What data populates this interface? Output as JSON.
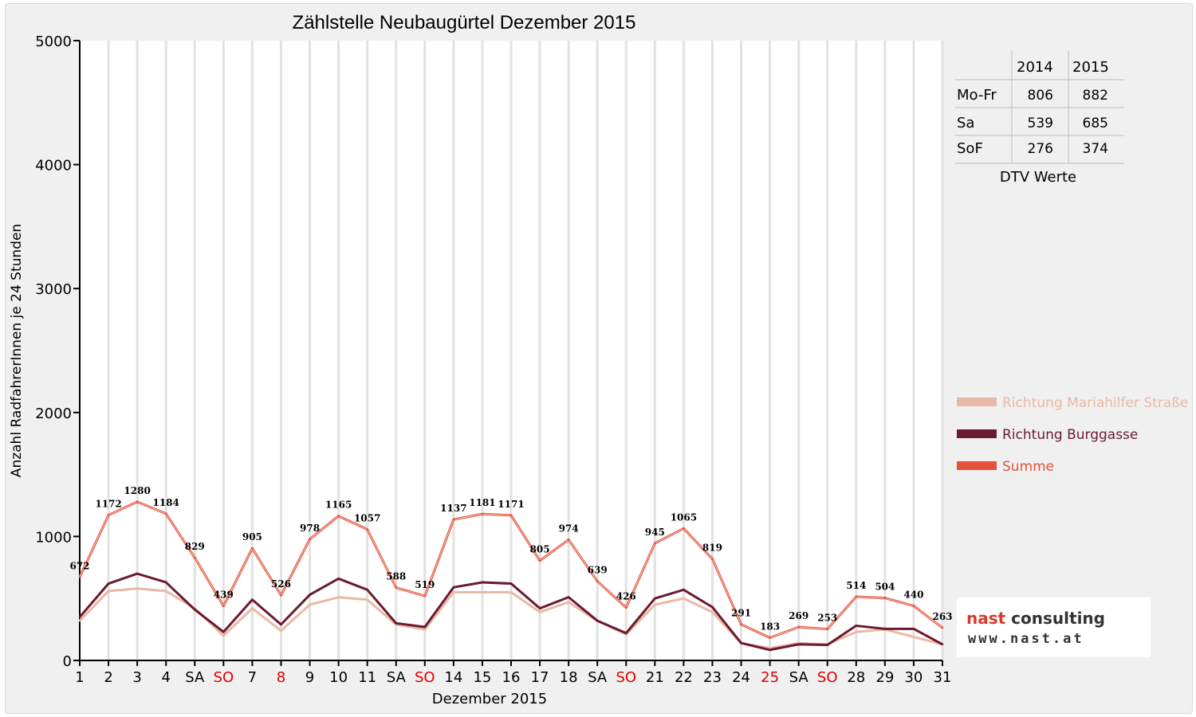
{
  "chart_data": {
    "type": "line",
    "title": "Zählstelle Neubaugürtel Dezember 2015",
    "xlabel": "Dezember 2015",
    "ylabel": "Anzahl RadfahrerInnen je 24 Stunden",
    "ylim": [
      0,
      5000
    ],
    "yticks": [
      0,
      1000,
      2000,
      3000,
      4000,
      5000
    ],
    "grid": "vertical",
    "legend_position": "right",
    "categories": [
      "1",
      "2",
      "3",
      "4",
      "SA",
      "SO",
      "7",
      "8",
      "9",
      "10",
      "11",
      "SA",
      "SO",
      "14",
      "15",
      "16",
      "17",
      "18",
      "SA",
      "SO",
      "21",
      "22",
      "23",
      "24",
      "25",
      "SA",
      "SO",
      "28",
      "29",
      "30",
      "31"
    ],
    "holiday_indices": [
      5,
      7,
      12,
      19,
      24,
      26
    ],
    "series": [
      {
        "name": "Richtung Mariahilfer Straße",
        "color": "#e8b9a4",
        "values": [
          320,
          560,
          580,
          560,
          420,
          200,
          420,
          240,
          450,
          510,
          490,
          290,
          250,
          550,
          550,
          550,
          390,
          470,
          320,
          210,
          450,
          500,
          390,
          140,
          100,
          140,
          130,
          230,
          250,
          190,
          130
        ]
      },
      {
        "name": "Richtung Burggasse",
        "color": "#6b1a30",
        "values": [
          350,
          620,
          700,
          630,
          410,
          230,
          490,
          290,
          530,
          660,
          570,
          300,
          270,
          590,
          630,
          620,
          420,
          510,
          320,
          220,
          500,
          570,
          430,
          140,
          85,
          130,
          125,
          280,
          255,
          255,
          130
        ]
      },
      {
        "name": "Summe",
        "color": "#e3533c",
        "values": [
          672,
          1172,
          1280,
          1184,
          829,
          439,
          905,
          526,
          978,
          1165,
          1057,
          588,
          519,
          1137,
          1181,
          1171,
          805,
          974,
          639,
          426,
          945,
          1065,
          819,
          291,
          183,
          269,
          253,
          514,
          504,
          440,
          263
        ],
        "labels": [
          "672",
          "1172",
          "1280",
          "1184",
          "829",
          "439",
          "905",
          "526",
          "978",
          "1165",
          "1057",
          "588",
          "519",
          "1137",
          "1181",
          "1171",
          "805",
          "974",
          "639",
          "426",
          "945",
          "1065",
          "819",
          "291",
          "183",
          "269",
          "253",
          "514",
          "504",
          "440",
          "263"
        ]
      }
    ]
  },
  "dtv_table": {
    "headers": [
      "2014",
      "2015"
    ],
    "rows": [
      {
        "label": "Mo-Fr",
        "v2014": "806",
        "v2015": "882"
      },
      {
        "label": "Sa",
        "v2014": "539",
        "v2015": "685"
      },
      {
        "label": "SoF",
        "v2014": "276",
        "v2015": "374"
      }
    ],
    "caption": "DTV Werte"
  },
  "logo": {
    "line1_a": "nast",
    "line1_b": "consulting",
    "line2": "www.nast.at"
  }
}
